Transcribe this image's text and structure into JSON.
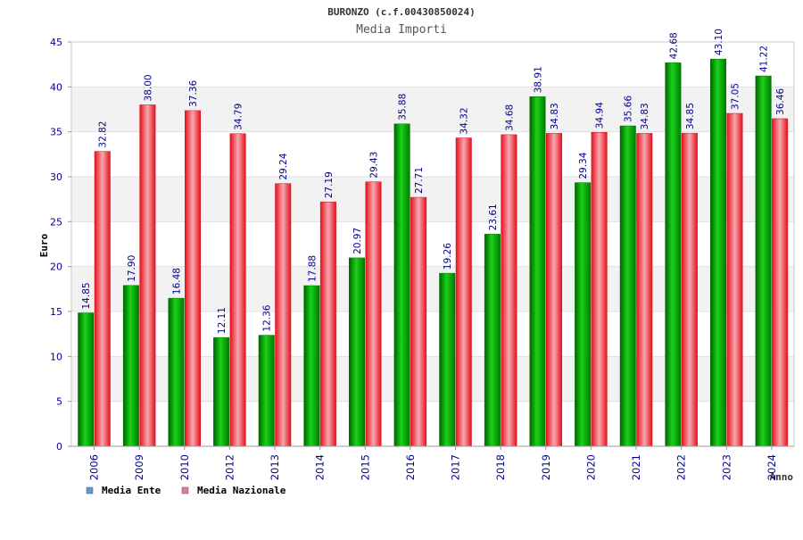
{
  "chart_data": {
    "type": "bar",
    "title": "BURONZO (c.f.00430850024)",
    "subtitle": "Media Importi",
    "xlabel": "Anno",
    "ylabel": "Euro",
    "ylim": [
      0,
      45
    ],
    "yticks": [
      0,
      5,
      10,
      15,
      20,
      25,
      30,
      35,
      40,
      45
    ],
    "grid": true,
    "legend_position": "bottom-left",
    "categories": [
      "2006",
      "2009",
      "2010",
      "2012",
      "2013",
      "2014",
      "2015",
      "2016",
      "2017",
      "2018",
      "2019",
      "2020",
      "2021",
      "2022",
      "2023",
      "2024"
    ],
    "series": [
      {
        "name": "Media Ente",
        "color": "#00b000",
        "legend_color": "#5b9bd5",
        "values": [
          14.85,
          17.9,
          16.48,
          12.11,
          12.36,
          17.88,
          20.97,
          35.88,
          19.26,
          23.61,
          38.91,
          29.34,
          35.66,
          42.68,
          43.1,
          41.22
        ],
        "labels": [
          "14.85",
          "17.90",
          "16.48",
          "12.11",
          "12.36",
          "17.88",
          "20.97",
          "35.88",
          "19.26",
          "23.61",
          "38.91",
          "29.34",
          "35.66",
          "42.68",
          "43.10",
          "41.22"
        ]
      },
      {
        "name": "Media Nazionale",
        "color": "#ee1c24",
        "legend_color": "#e87aa0",
        "values": [
          32.82,
          38.0,
          37.36,
          34.79,
          29.24,
          27.19,
          29.43,
          27.71,
          34.32,
          34.68,
          34.83,
          34.94,
          34.83,
          34.85,
          37.05,
          36.46
        ],
        "labels": [
          "32.82",
          "38.00",
          "37.36",
          "34.79",
          "29.24",
          "27.19",
          "29.43",
          "27.71",
          "34.32",
          "34.68",
          "34.83",
          "34.94",
          "34.83",
          "34.85",
          "37.05",
          "36.46"
        ]
      }
    ]
  }
}
